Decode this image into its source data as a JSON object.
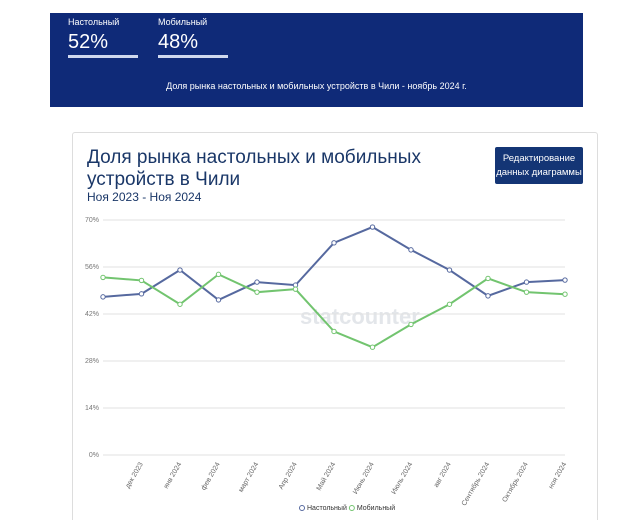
{
  "header": {
    "stats": [
      {
        "label": "Настольный",
        "value": "52%"
      },
      {
        "label": "Мобильный",
        "value": "48%"
      }
    ],
    "caption": "Доля рынка настольных и мобильных устройств в Чили - ноябрь 2024 г."
  },
  "button": [
    "Редактирование",
    "данных диаграммы"
  ],
  "chart_data": {
    "type": "line",
    "title": "Доля рынка настольных и мобильных устройств в Чили",
    "subtitle": "Ноя 2023 - Ноя 2024",
    "watermark": "statcounter",
    "categories": [
      null,
      "дек 2023",
      "янв 2024",
      "фев 2024",
      "март 2024",
      "Апр 2024",
      "Май 2024",
      "Июнь 2024",
      "Июль 2024",
      "авг 2024",
      "Сентябрь 2024",
      "Октябрь 2024",
      "ноя 2024"
    ],
    "series": [
      {
        "name": "Настольный",
        "color": "#56699f",
        "values": [
          47.1,
          48.0,
          55.1,
          46.2,
          51.5,
          50.6,
          63.2,
          67.9,
          61.1,
          55.1,
          47.4,
          51.5,
          52.1
        ]
      },
      {
        "name": "Мобильный",
        "color": "#72c46f",
        "values": [
          52.9,
          52.0,
          44.9,
          53.8,
          48.5,
          49.4,
          36.8,
          32.1,
          38.9,
          44.9,
          52.6,
          48.5,
          47.9
        ]
      }
    ],
    "ylim": [
      0,
      70
    ],
    "yticks": [
      {
        "value": 0,
        "label": "0%"
      },
      {
        "value": 14,
        "label": "14%"
      },
      {
        "value": 28,
        "label": "28%"
      },
      {
        "value": 42,
        "label": "42%"
      },
      {
        "value": 56,
        "label": "56%"
      },
      {
        "value": 70,
        "label": "70%"
      }
    ],
    "grid": true,
    "legend": "bottom"
  }
}
